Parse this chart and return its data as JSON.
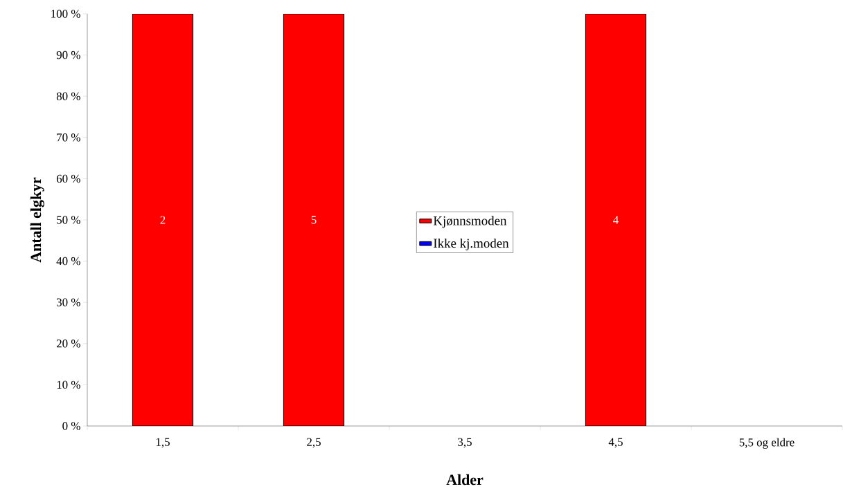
{
  "chart_data": {
    "type": "bar",
    "stacked": true,
    "xlabel": "Alder",
    "ylabel": "Antall elgkyr",
    "categories": [
      "1,5",
      "2,5",
      "3,5",
      "4,5",
      "5,5 og eldre"
    ],
    "series": [
      {
        "name": "Kjønnsmoden",
        "color": "#ff0000",
        "values": [
          100,
          100,
          0,
          100,
          0
        ]
      },
      {
        "name": "Ikke kj.moden",
        "color": "#0000ff",
        "values": [
          0,
          0,
          0,
          0,
          0
        ]
      }
    ],
    "ylim": [
      0,
      100
    ],
    "yticks": [
      {
        "value": 0,
        "label": "0 %"
      },
      {
        "value": 10,
        "label": "10 %"
      },
      {
        "value": 20,
        "label": "20 %"
      },
      {
        "value": 30,
        "label": "30 %"
      },
      {
        "value": 40,
        "label": "40 %"
      },
      {
        "value": 50,
        "label": "50 %"
      },
      {
        "value": 60,
        "label": "60 %"
      },
      {
        "value": 70,
        "label": "70 %"
      },
      {
        "value": 80,
        "label": "80 %"
      },
      {
        "value": 90,
        "label": "90 %"
      },
      {
        "value": 100,
        "label": "100 %"
      }
    ],
    "annotations": [
      "2",
      "5",
      "4"
    ],
    "grid": false,
    "legend": "center"
  }
}
